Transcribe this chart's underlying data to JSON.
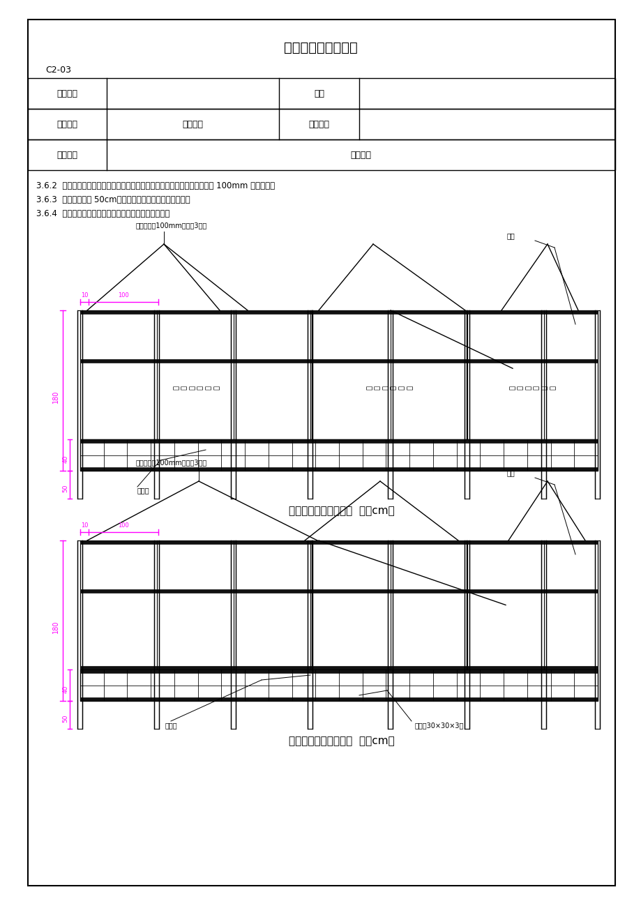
{
  "title": "技术、质量交底记录",
  "code": "C2-03",
  "magenta": "#FF00FF",
  "black": "#000000",
  "bg": "#FFFFFF",
  "label_gangguan1": "钢管（直径100mm，间距3米）",
  "label_gangguan2": "钢管（直径100mm，间距3米）",
  "label_dangban": "挡板",
  "label_jichukuang": "基础墙",
  "label_jiaotie": "角铁（30×30×3）",
  "label_jianzhu": "构\n建\n和\n谐\n交\n通",
  "diagram1_title": "施工围挡安装图（正面  单位cm）",
  "diagram2_title": "施工围挡安装图（背面  单位cm）",
  "text_line1": "3.6.2  三块挡板为一组，带宣传标语挡板在中间，两侧为不带字挡板，两边立 100mm 钢管固定。",
  "text_line2": "3.6.3  钢管埋入地下 50cm，并灌砂浆固定，确保钢管牢固。",
  "text_line3": "3.6.4  钢管与挡板及挡板之间用角铁（两道）电焊牢固。"
}
